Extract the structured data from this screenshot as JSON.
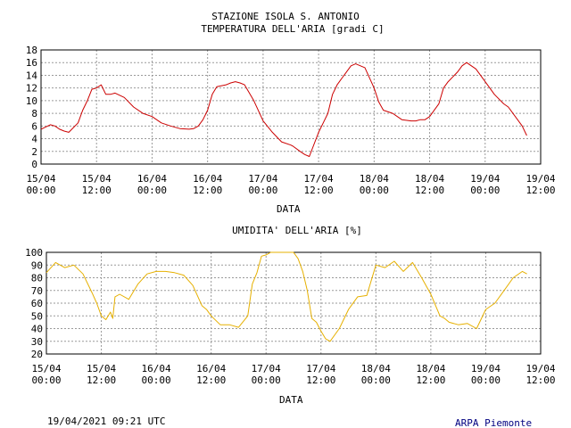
{
  "charts": [
    {
      "title_lines": [
        "STAZIONE ISOLA S. ANTONIO",
        "TEMPERATURA DELL'ARIA [gradi C]"
      ],
      "xlabel": "DATA",
      "ylim": [
        0,
        18
      ],
      "yticks": [
        "0",
        "2",
        "4",
        "6",
        "8",
        "10",
        "12",
        "14",
        "16",
        "18"
      ],
      "xticks": [
        [
          "15/04",
          "00:00"
        ],
        [
          "15/04",
          "12:00"
        ],
        [
          "16/04",
          "00:00"
        ],
        [
          "16/04",
          "12:00"
        ],
        [
          "17/04",
          "00:00"
        ],
        [
          "17/04",
          "12:00"
        ],
        [
          "18/04",
          "00:00"
        ],
        [
          "18/04",
          "12:00"
        ],
        [
          "19/04",
          "00:00"
        ],
        [
          "19/04",
          "12:00"
        ]
      ]
    },
    {
      "title_lines": [
        "UMIDITA' DELL'ARIA [%]"
      ],
      "xlabel": "DATA",
      "ylim": [
        20,
        100
      ],
      "yticks": [
        "20",
        "30",
        "40",
        "50",
        "60",
        "70",
        "80",
        "90",
        "100"
      ],
      "xticks": [
        [
          "15/04",
          "00:00"
        ],
        [
          "15/04",
          "12:00"
        ],
        [
          "16/04",
          "00:00"
        ],
        [
          "16/04",
          "12:00"
        ],
        [
          "17/04",
          "00:00"
        ],
        [
          "17/04",
          "12:00"
        ],
        [
          "18/04",
          "00:00"
        ],
        [
          "18/04",
          "12:00"
        ],
        [
          "19/04",
          "00:00"
        ],
        [
          "19/04",
          "12:00"
        ]
      ]
    }
  ],
  "chart_data": [
    {
      "type": "line",
      "title": "STAZIONE ISOLA S. ANTONIO TEMPERATURA DELL'ARIA [gradi C]",
      "xlabel": "DATA",
      "ylabel": "",
      "x_unit": "hours from 15/04 00:00",
      "xlim": [
        0,
        108
      ],
      "ylim": [
        0,
        18
      ],
      "grid": true,
      "series": [
        {
          "color": "#cc0000",
          "x": [
            0,
            2,
            3,
            4,
            5,
            6,
            8,
            9,
            10,
            11,
            12,
            13,
            14,
            15,
            16,
            18,
            20,
            22,
            24,
            26,
            28,
            30,
            32,
            33,
            34,
            35,
            36,
            37,
            38,
            40,
            41,
            42,
            43,
            44,
            46,
            48,
            50,
            52,
            54,
            54.5,
            56,
            57,
            58,
            60,
            61,
            62,
            63,
            64,
            65,
            66,
            67,
            68,
            70,
            72,
            73,
            74,
            76,
            78,
            80,
            81,
            82,
            83,
            84,
            85,
            86,
            87,
            88,
            90,
            91,
            92,
            94,
            96,
            98,
            100,
            101,
            102,
            104,
            105
          ],
          "y": [
            5.5,
            6.2,
            6.0,
            5.5,
            5.2,
            5.0,
            6.5,
            8.5,
            10.0,
            11.8,
            12.0,
            12.5,
            11.0,
            11.0,
            11.2,
            10.5,
            9.0,
            8.0,
            7.5,
            6.5,
            6.0,
            5.6,
            5.5,
            5.6,
            6.0,
            7.0,
            8.5,
            11.0,
            12.2,
            12.5,
            12.8,
            13.0,
            12.8,
            12.5,
            10.0,
            6.8,
            5.0,
            3.5,
            3.0,
            2.8,
            2.0,
            1.5,
            1.2,
            5.0,
            6.5,
            8.0,
            11.0,
            12.5,
            13.5,
            14.5,
            15.5,
            15.8,
            15.2,
            12.0,
            9.8,
            8.5,
            8.0,
            7.0,
            6.8,
            6.8,
            7.0,
            7.0,
            7.5,
            8.5,
            9.5,
            12.0,
            13.0,
            14.5,
            15.5,
            16.0,
            15.0,
            13.0,
            11.0,
            9.5,
            9.0,
            8.0,
            6.0,
            4.5
          ]
        }
      ]
    },
    {
      "type": "line",
      "title": "UMIDITA' DELL'ARIA [%]",
      "xlabel": "DATA",
      "ylabel": "",
      "x_unit": "hours from 15/04 00:00",
      "xlim": [
        0,
        108
      ],
      "ylim": [
        20,
        100
      ],
      "grid": true,
      "series": [
        {
          "color": "#e6b000",
          "x": [
            0,
            2,
            4,
            6,
            8,
            10,
            11,
            12,
            13,
            14,
            14.5,
            15,
            16,
            18,
            20,
            22,
            24,
            26,
            28,
            30,
            32,
            34,
            35,
            36,
            38,
            40,
            42,
            44,
            45,
            46,
            47,
            48,
            49,
            50,
            52,
            54,
            55,
            56,
            57,
            58,
            59,
            60,
            61,
            62,
            64,
            66,
            68,
            70,
            72,
            74,
            76,
            78,
            80,
            82,
            84,
            86,
            87,
            88,
            90,
            92,
            94,
            96,
            98,
            100,
            102,
            104,
            105
          ],
          "y": [
            84,
            92,
            88,
            90,
            83,
            68,
            60,
            50,
            47,
            53,
            48,
            65,
            67,
            63,
            75,
            83,
            85,
            85,
            84,
            82,
            74,
            58,
            55,
            50,
            43,
            43,
            41,
            50,
            75,
            84,
            97,
            98,
            100,
            100,
            100,
            100,
            95,
            85,
            70,
            48,
            45,
            38,
            32,
            30,
            40,
            55,
            65,
            66,
            90,
            88,
            93,
            85,
            92,
            80,
            67,
            50,
            48,
            45,
            43,
            44,
            40,
            55,
            60,
            70,
            80,
            85,
            83
          ]
        }
      ]
    }
  ],
  "footer": {
    "timestamp": "19/04/2021 09:21 UTC",
    "brand": "ARPA Piemonte",
    "brand_color": "#000080"
  }
}
